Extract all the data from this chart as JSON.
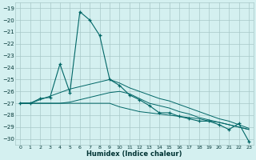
{
  "xlabel": "Humidex (Indice chaleur)",
  "x": [
    0,
    1,
    2,
    3,
    4,
    5,
    6,
    7,
    8,
    9,
    10,
    11,
    12,
    13,
    14,
    15,
    16,
    17,
    18,
    19,
    20,
    21,
    22,
    23
  ],
  "y_main": [
    -27,
    -27,
    -26.6,
    -26.5,
    -23.7,
    -26.1,
    -19.3,
    -20,
    -21.3,
    -25,
    -25.5,
    -26.3,
    -26.7,
    -27.2,
    -27.8,
    -27.8,
    -28.1,
    -28.3,
    -28.5,
    -28.5,
    -28.8,
    -29.2,
    -28.7,
    -30.2
  ],
  "y_line1": [
    -27,
    -27,
    -27,
    -27,
    -27,
    -27,
    -27,
    -27,
    -27,
    -27,
    -27.3,
    -27.5,
    -27.7,
    -27.8,
    -27.9,
    -28.0,
    -28.1,
    -28.2,
    -28.3,
    -28.5,
    -28.6,
    -28.8,
    -29.0,
    -29.2
  ],
  "y_line2": [
    -27,
    -27,
    -26.7,
    -26.4,
    -26.1,
    -25.8,
    -25.6,
    -25.4,
    -25.2,
    -25.0,
    -25.3,
    -25.7,
    -26.0,
    -26.3,
    -26.6,
    -26.8,
    -27.1,
    -27.4,
    -27.7,
    -28.0,
    -28.3,
    -28.5,
    -28.8,
    -29.1
  ],
  "y_line3": [
    -27,
    -27,
    -27.0,
    -27.0,
    -27.0,
    -26.9,
    -26.7,
    -26.5,
    -26.3,
    -26.1,
    -26.0,
    -26.2,
    -26.6,
    -27.0,
    -27.2,
    -27.4,
    -27.7,
    -27.9,
    -28.2,
    -28.4,
    -28.6,
    -28.8,
    -29.0,
    -29.2
  ],
  "line_color": "#006666",
  "bg_color": "#d4f0f0",
  "grid_color": "#a8c8c8",
  "ylim": [
    -30.5,
    -18.5
  ],
  "xlim": [
    -0.5,
    23.5
  ],
  "yticks": [
    -19,
    -20,
    -21,
    -22,
    -23,
    -24,
    -25,
    -26,
    -27,
    -28,
    -29,
    -30
  ],
  "xtick_labels": [
    "0",
    "1",
    "2",
    "3",
    "4",
    "5",
    "6",
    "7",
    "8",
    "9",
    "10",
    "11",
    "12",
    "13",
    "14",
    "15",
    "16",
    "17",
    "18",
    "19",
    "20",
    "21",
    "22",
    "23"
  ]
}
